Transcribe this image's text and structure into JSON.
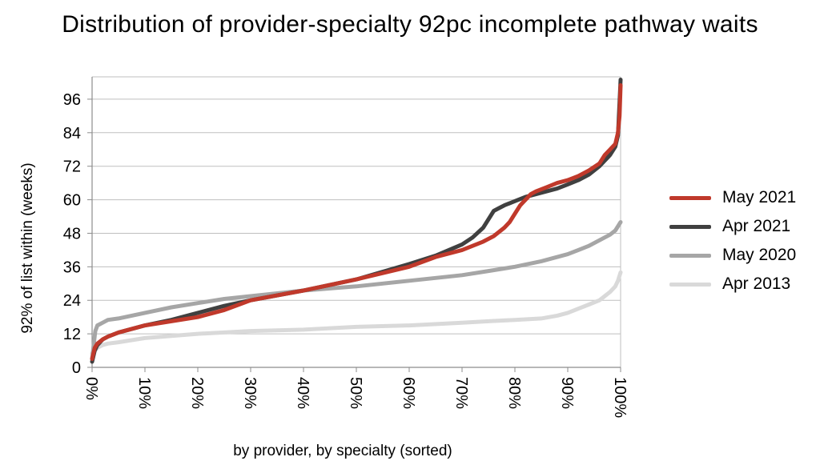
{
  "chart_data": {
    "type": "line",
    "title": "Distribution of provider-specialty 92pc incomplete pathway waits",
    "xlabel": "by provider, by specialty (sorted)",
    "ylabel": "92% of list within (weeks)",
    "xlim": [
      0,
      100
    ],
    "ylim": [
      0,
      104
    ],
    "x_ticks": [
      0,
      10,
      20,
      30,
      40,
      50,
      60,
      70,
      80,
      90,
      100
    ],
    "x_tick_labels": [
      "0%",
      "10%",
      "20%",
      "30%",
      "40%",
      "50%",
      "60%",
      "70%",
      "80%",
      "90%",
      "100%"
    ],
    "y_ticks": [
      0,
      12,
      24,
      36,
      48,
      60,
      72,
      84,
      96
    ],
    "y_tick_labels": [
      "0",
      "12",
      "24",
      "36",
      "48",
      "60",
      "72",
      "84",
      "96"
    ],
    "grid": "horizontal",
    "legend_position": "right",
    "series": [
      {
        "name": "Apr 2013",
        "color": "#d9d9d9",
        "x": [
          0,
          0.5,
          1,
          2,
          3,
          5,
          10,
          20,
          30,
          40,
          50,
          60,
          70,
          75,
          80,
          85,
          88,
          90,
          92,
          94,
          96,
          97,
          98,
          99,
          99.5,
          100
        ],
        "y": [
          5,
          6,
          7,
          8,
          8.5,
          9,
          10.5,
          12,
          13,
          13.5,
          14.5,
          15,
          16,
          16.5,
          17,
          17.5,
          18.5,
          19.5,
          21,
          22.5,
          24,
          25.5,
          27,
          29,
          31,
          34
        ]
      },
      {
        "name": "May 2020",
        "color": "#a6a6a6",
        "x": [
          0,
          0.3,
          0.6,
          1,
          2,
          3,
          5,
          10,
          15,
          20,
          25,
          30,
          40,
          50,
          60,
          70,
          75,
          80,
          85,
          90,
          92,
          94,
          96,
          98,
          99,
          100
        ],
        "y": [
          3,
          8,
          13,
          15,
          16,
          17,
          17.5,
          19.5,
          21.5,
          23,
          24.5,
          25.5,
          27.5,
          29,
          31,
          33,
          34.5,
          36,
          38,
          40.5,
          42,
          43.5,
          45.5,
          47.5,
          49,
          52
        ]
      },
      {
        "name": "Apr 2021",
        "color": "#404040",
        "x": [
          0,
          0.5,
          1,
          2,
          3,
          5,
          10,
          15,
          20,
          25,
          30,
          40,
          50,
          60,
          65,
          70,
          72,
          74,
          75,
          76,
          77,
          78,
          80,
          82,
          84,
          86,
          88,
          90,
          92,
          94,
          95,
          96,
          97,
          98,
          99,
          99.5,
          99.8,
          100
        ],
        "y": [
          2,
          6,
          8,
          10,
          11,
          12.5,
          15,
          17,
          19.5,
          22,
          24,
          27.5,
          31.5,
          37,
          40,
          44,
          46.5,
          50,
          53,
          56,
          57,
          58,
          59.5,
          61,
          62,
          63,
          64,
          65.5,
          67,
          69,
          70.5,
          72,
          74,
          76,
          79,
          83,
          95,
          103
        ]
      },
      {
        "name": "May 2021",
        "color": "#c0392b",
        "x": [
          0,
          0.5,
          1,
          2,
          3,
          5,
          10,
          15,
          20,
          25,
          30,
          40,
          50,
          60,
          65,
          70,
          72,
          74,
          76,
          78,
          79,
          80,
          81,
          82,
          83,
          84,
          86,
          88,
          90,
          92,
          94,
          96,
          97,
          98,
          99,
          99.5,
          99.8,
          100
        ],
        "y": [
          3,
          7,
          8.5,
          10,
          11,
          12.5,
          15,
          16.5,
          18,
          20.5,
          24,
          27.5,
          31.5,
          36,
          39.5,
          42,
          43.5,
          45,
          47,
          50,
          52,
          55,
          58,
          60,
          62,
          63,
          64.5,
          66,
          67,
          68.5,
          70.5,
          73,
          76,
          78,
          80,
          84,
          90,
          101
        ]
      }
    ]
  }
}
